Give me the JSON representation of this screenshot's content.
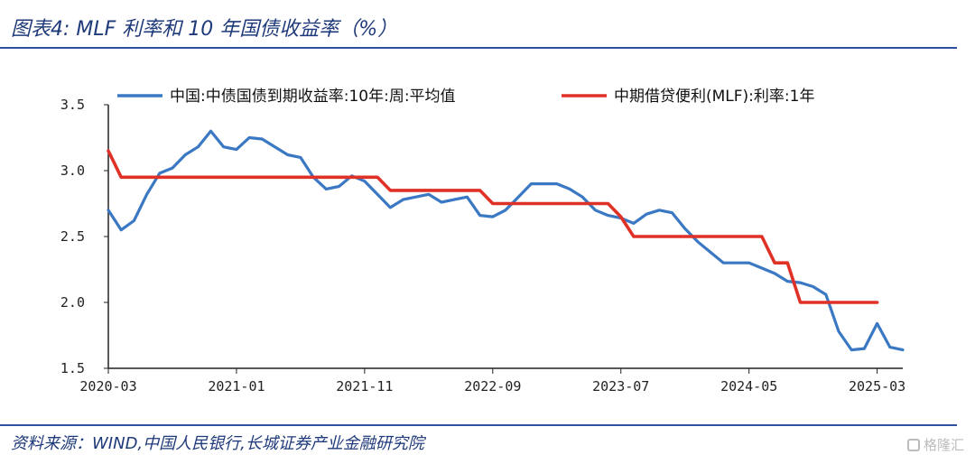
{
  "header": {
    "title": "图表4:  MLF 利率和 10 年国债收益率（%）"
  },
  "footer": {
    "source": "资料来源：WIND,中国人民银行,长城证券产业金融研究院",
    "watermark": "格隆汇"
  },
  "chart_data": {
    "type": "line",
    "xlim": [
      "2020-03",
      "2025-05"
    ],
    "ylim": [
      1.5,
      3.5
    ],
    "yticks": [
      "3.5",
      "3.0",
      "2.5",
      "2.0",
      "1.5"
    ],
    "ytick_values": [
      3.5,
      3.0,
      2.5,
      2.0,
      1.5
    ],
    "xticks": [
      "2020-03",
      "2021-01",
      "2021-11",
      "2022-09",
      "2023-07",
      "2024-05",
      "2025-03"
    ],
    "legend": "top",
    "grid": false,
    "series": [
      {
        "name": "中国:中债国债到期收益率:10年:周:平均值",
        "color": "#3b78c3",
        "points": [
          [
            "2020-03",
            2.7
          ],
          [
            "2020-04",
            2.55
          ],
          [
            "2020-05",
            2.62
          ],
          [
            "2020-06",
            2.82
          ],
          [
            "2020-07",
            2.98
          ],
          [
            "2020-08",
            3.02
          ],
          [
            "2020-09",
            3.12
          ],
          [
            "2020-10",
            3.18
          ],
          [
            "2020-11",
            3.3
          ],
          [
            "2020-12",
            3.18
          ],
          [
            "2021-01",
            3.16
          ],
          [
            "2021-02",
            3.25
          ],
          [
            "2021-03",
            3.24
          ],
          [
            "2021-04",
            3.18
          ],
          [
            "2021-05",
            3.12
          ],
          [
            "2021-06",
            3.1
          ],
          [
            "2021-07",
            2.95
          ],
          [
            "2021-08",
            2.86
          ],
          [
            "2021-09",
            2.88
          ],
          [
            "2021-10",
            2.96
          ],
          [
            "2021-11",
            2.92
          ],
          [
            "2021-12",
            2.82
          ],
          [
            "2022-01",
            2.72
          ],
          [
            "2022-02",
            2.78
          ],
          [
            "2022-03",
            2.8
          ],
          [
            "2022-04",
            2.82
          ],
          [
            "2022-05",
            2.76
          ],
          [
            "2022-06",
            2.78
          ],
          [
            "2022-07",
            2.8
          ],
          [
            "2022-08",
            2.66
          ],
          [
            "2022-09",
            2.65
          ],
          [
            "2022-10",
            2.7
          ],
          [
            "2022-11",
            2.8
          ],
          [
            "2022-12",
            2.9
          ],
          [
            "2023-01",
            2.9
          ],
          [
            "2023-02",
            2.9
          ],
          [
            "2023-03",
            2.86
          ],
          [
            "2023-04",
            2.8
          ],
          [
            "2023-05",
            2.7
          ],
          [
            "2023-06",
            2.66
          ],
          [
            "2023-07",
            2.64
          ],
          [
            "2023-08",
            2.6
          ],
          [
            "2023-09",
            2.67
          ],
          [
            "2023-10",
            2.7
          ],
          [
            "2023-11",
            2.68
          ],
          [
            "2023-12",
            2.56
          ],
          [
            "2024-01",
            2.46
          ],
          [
            "2024-02",
            2.38
          ],
          [
            "2024-03",
            2.3
          ],
          [
            "2024-04",
            2.3
          ],
          [
            "2024-05",
            2.3
          ],
          [
            "2024-06",
            2.26
          ],
          [
            "2024-07",
            2.22
          ],
          [
            "2024-08",
            2.16
          ],
          [
            "2024-09",
            2.15
          ],
          [
            "2024-10",
            2.12
          ],
          [
            "2024-11",
            2.06
          ],
          [
            "2024-12",
            1.78
          ],
          [
            "2025-01",
            1.64
          ],
          [
            "2025-02",
            1.65
          ],
          [
            "2025-03",
            1.84
          ],
          [
            "2025-04",
            1.66
          ],
          [
            "2025-05",
            1.64
          ]
        ]
      },
      {
        "name": "中期借贷便利(MLF):利率:1年",
        "color": "#e03127",
        "points": [
          [
            "2020-03",
            3.15
          ],
          [
            "2020-04",
            2.95
          ],
          [
            "2021-12",
            2.95
          ],
          [
            "2022-01",
            2.85
          ],
          [
            "2022-08",
            2.85
          ],
          [
            "2022-09",
            2.75
          ],
          [
            "2023-06",
            2.75
          ],
          [
            "2023-07",
            2.65
          ],
          [
            "2023-08",
            2.5
          ],
          [
            "2024-06",
            2.5
          ],
          [
            "2024-07",
            2.3
          ],
          [
            "2024-08",
            2.3
          ],
          [
            "2024-09",
            2.0
          ],
          [
            "2025-03",
            2.0
          ]
        ]
      }
    ]
  }
}
